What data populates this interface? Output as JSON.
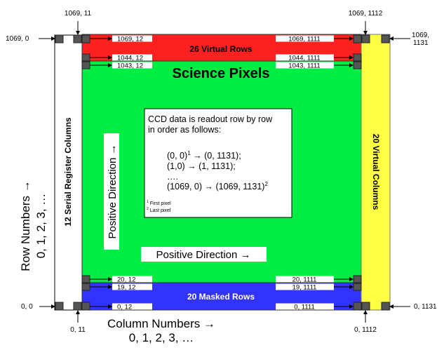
{
  "regions": {
    "virtual_rows": {
      "label": "26 Virtual Rows",
      "color": "#ff2020"
    },
    "science": {
      "label": "Science Pixels",
      "color": "#00ee44"
    },
    "masked_rows": {
      "label": "20 Masked Rows",
      "color": "#3333ff"
    },
    "virtual_columns": {
      "label": "20 Virtual Columns",
      "color": "#ffff44"
    },
    "serial_register": {
      "label": "12 Serial Register Columns",
      "color": "#ffffff"
    }
  },
  "outer_labels": {
    "top_1069_11": "1069, 11",
    "top_1069_1112": "1069, 1112",
    "left_1069_0": "1069, 0",
    "right_1069_1131_a": "1069,",
    "right_1069_1131_b": "1131",
    "left_0_0": "0, 0",
    "bottom_0_11": "0, 11",
    "bottom_0_1112": "0, 1112",
    "right_0_1131": "0, 1131"
  },
  "inner_labels": {
    "left": [
      "1069, 12",
      "1044, 12",
      "1043, 12",
      "20, 12",
      "19, 12",
      "0, 12"
    ],
    "right": [
      "1069, 1111",
      "1044, 1111",
      "1043, 1111",
      "20, 1111",
      "19, 1111",
      "0, 1111"
    ]
  },
  "axes": {
    "column_title": "Column Numbers →",
    "column_values": "0, 1, 2, 3, …",
    "row_title": "Row Numbers →",
    "row_values": "0, 1, 2, 3, …"
  },
  "directions": {
    "vertical": "Positive Direction →",
    "horizontal": "Positive Direction →"
  },
  "readout_box": {
    "line1": "CCD data is readout row by row",
    "line2": "in order as follows:",
    "seq1": "(0, 0)",
    "seq1_sup": "1",
    "seq1_rest": " → (0, 1131);",
    "seq2": "(1,0) → (1, 1131);",
    "seq3": "….",
    "seq4": "(1069, 0) → (1069, 1131)",
    "seq4_sup": "2",
    "fn1_num": "1",
    "fn1": "First pixel",
    "fn2_num": "2",
    "fn2": "Last pixel"
  }
}
